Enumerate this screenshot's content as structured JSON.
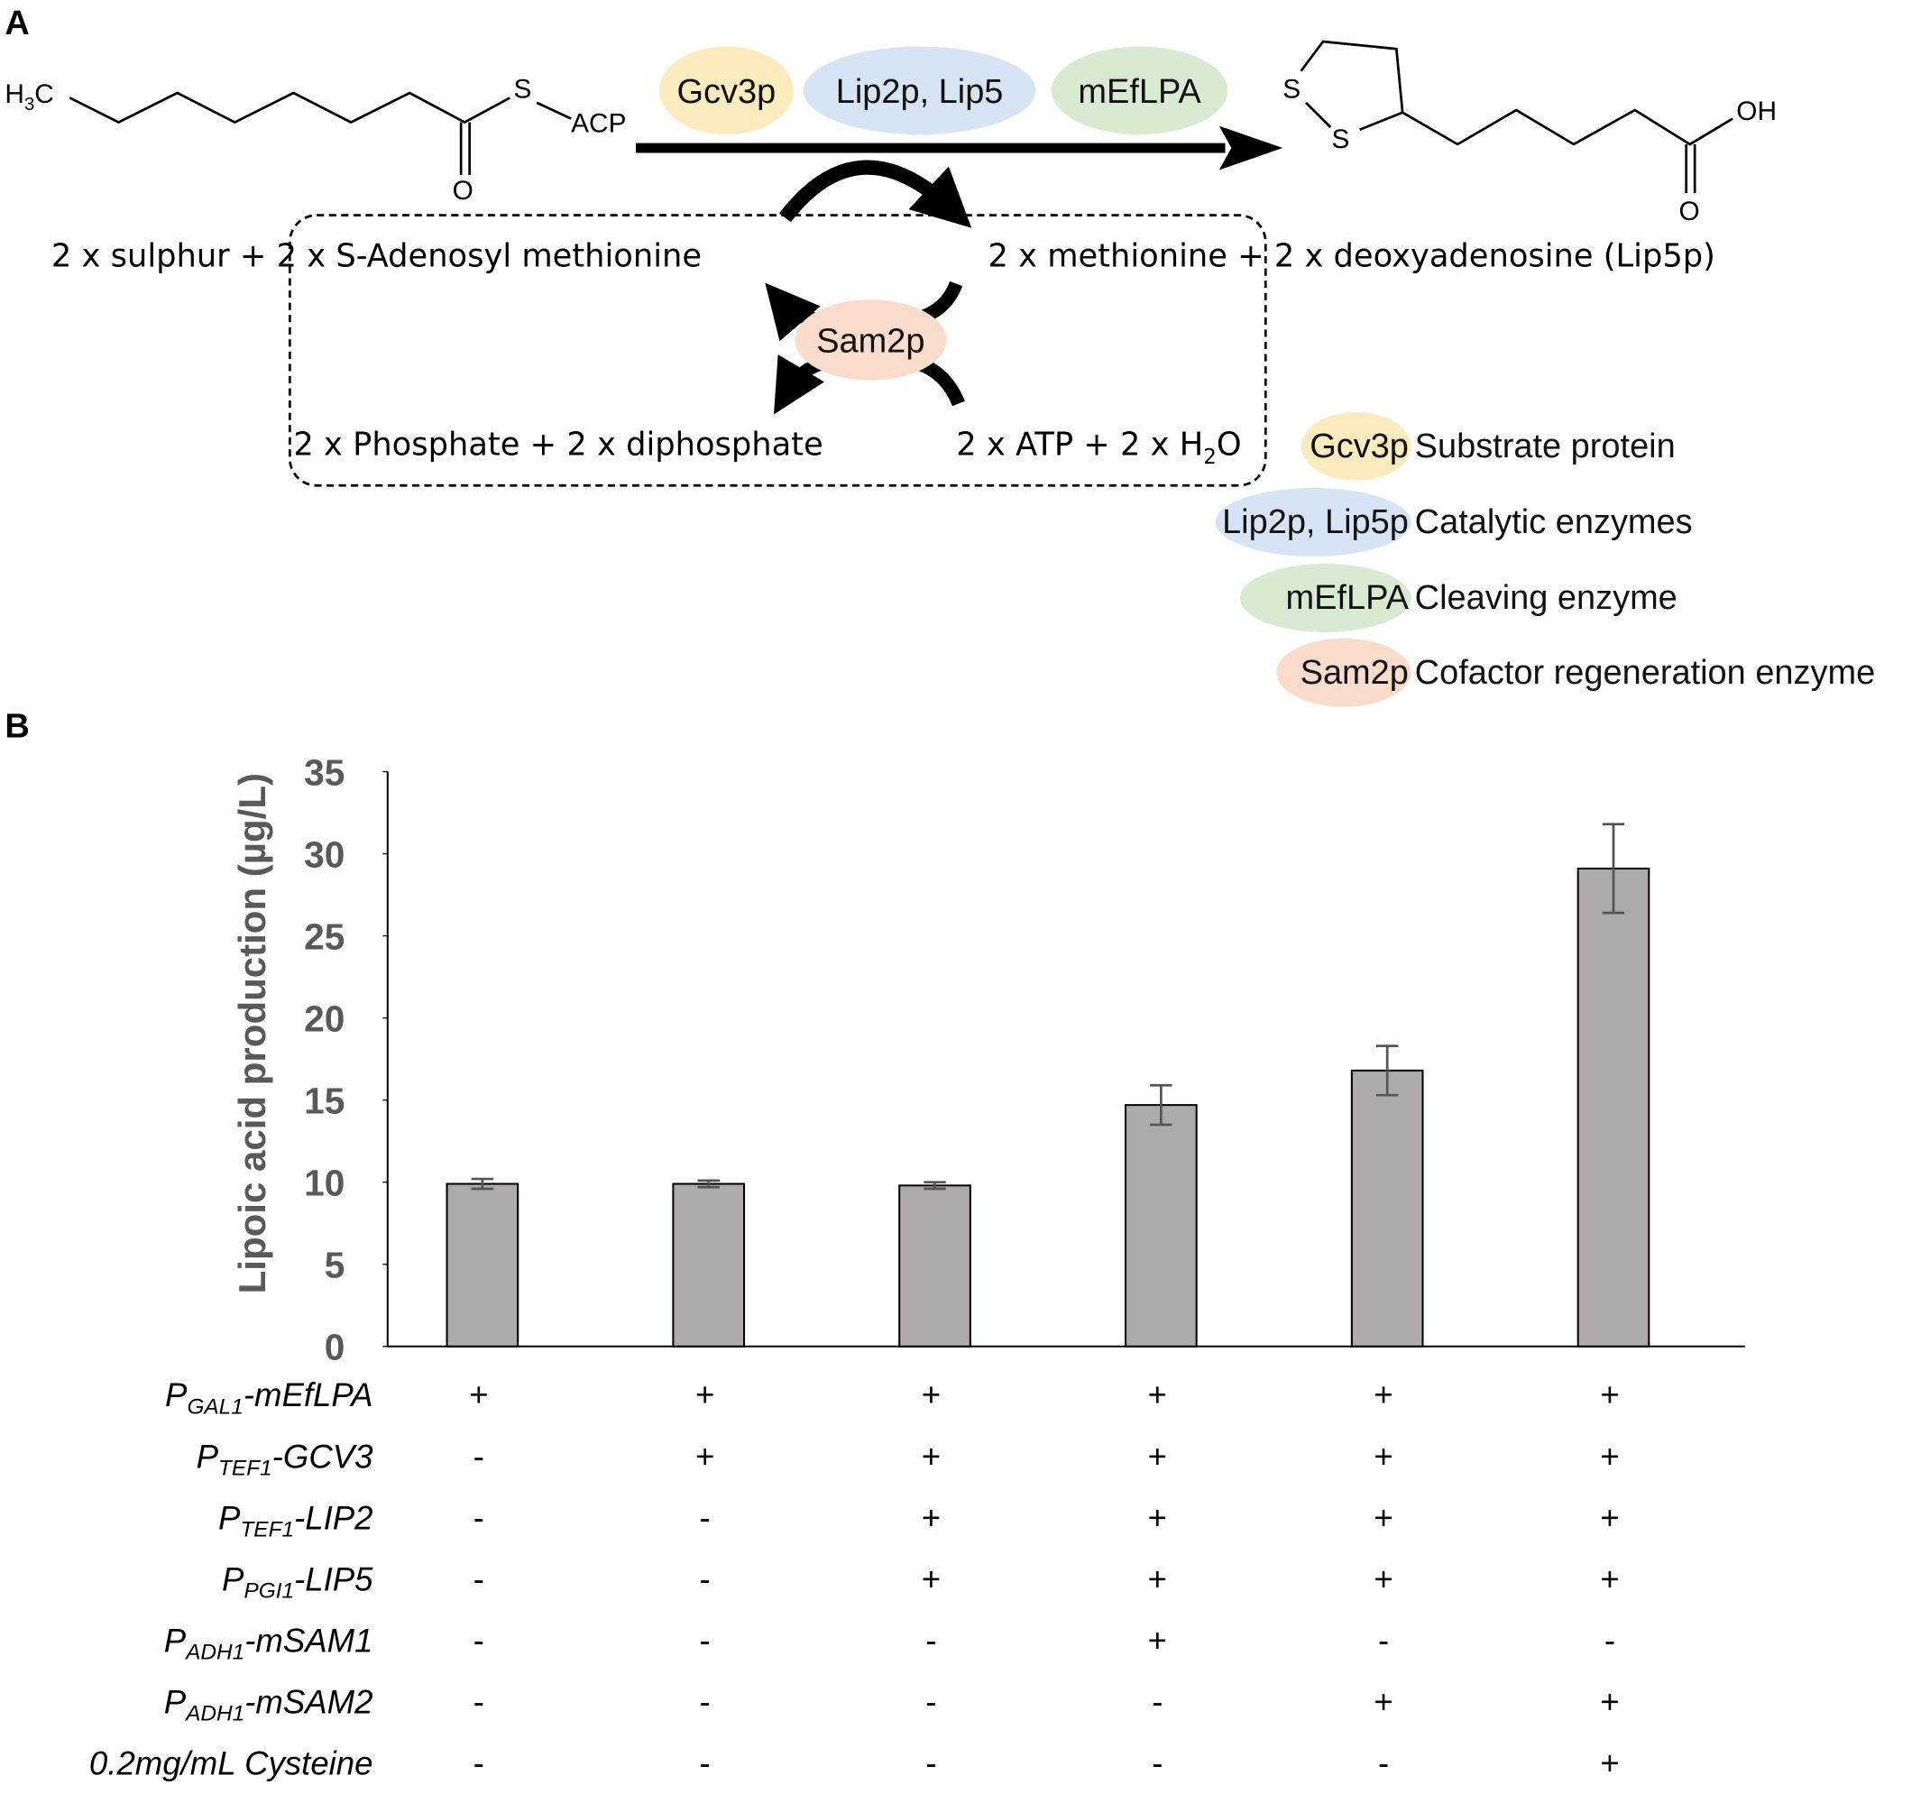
{
  "panel_a": {
    "label": "A",
    "substrate": {
      "h": "H",
      "sub3": "3",
      "c": "C",
      "s": "S",
      "acp": "ACP",
      "o": "O"
    },
    "product": {
      "s1": "S",
      "s2": "S",
      "oh": "OH",
      "o": "O"
    },
    "enzymes": [
      "Gcv3p",
      "Lip2p, Lip5",
      "mEfLPA"
    ],
    "reaction_left": "2 x sulphur + 2 x S-Adenosyl methionine",
    "reaction_right": "2 x methionine + 2 x deoxyadenosine (Lip5p)",
    "cofactor_enzyme": "Sam2p",
    "regen_left": "2 x Phosphate + 2 x diphosphate",
    "regen_right": {
      "text": "2 x ATP + 2 x H",
      "sub": "2",
      "end": "O"
    },
    "legend": [
      {
        "enzyme": "Gcv3p",
        "role": "Substrate protein"
      },
      {
        "enzyme": "Lip2p, Lip5p",
        "role": "Catalytic enzymes"
      },
      {
        "enzyme": "mEfLPA",
        "role": "Cleaving enzyme"
      },
      {
        "enzyme": "Sam2p",
        "role": "Cofactor regeneration enzyme"
      }
    ]
  },
  "chart_data": {
    "type": "bar",
    "panel_label": "B",
    "y_label": "Lipoic acid production (µg/L)",
    "values": [
      9.9,
      9.9,
      9.8,
      14.7,
      16.8,
      29.1
    ],
    "errors": [
      0.3,
      0.2,
      0.2,
      1.2,
      1.5,
      2.7
    ],
    "color": "#aeaaaa",
    "ylim": [
      0,
      35
    ],
    "yticks": [
      0,
      5,
      10,
      15,
      20,
      25,
      30,
      35
    ],
    "conditions": [
      {
        "prefix": "P",
        "sub": "GAL1",
        "gene": "-mEfLPA",
        "signs": [
          "+",
          "+",
          "+",
          "+",
          "+",
          "+"
        ]
      },
      {
        "prefix": "P",
        "sub": "TEF1",
        "gene": "-GCV3",
        "signs": [
          "-",
          "+",
          "+",
          "+",
          "+",
          "+"
        ]
      },
      {
        "prefix": "P",
        "sub": "TEF1",
        "gene": "-LIP2",
        "signs": [
          "-",
          "-",
          "+",
          "+",
          "+",
          "+"
        ]
      },
      {
        "prefix": "P",
        "sub": "PGI1",
        "gene": "-LIP5",
        "signs": [
          "-",
          "-",
          "+",
          "+",
          "+",
          "+"
        ]
      },
      {
        "prefix": "P",
        "sub": "ADH1",
        "gene": "-mSAM1",
        "signs": [
          "-",
          "-",
          "-",
          "+",
          "-",
          "-"
        ]
      },
      {
        "prefix": "P",
        "sub": "ADH1",
        "gene": "-mSAM2",
        "signs": [
          "-",
          "-",
          "-",
          "-",
          "+",
          "+"
        ]
      },
      {
        "gene": "0.2mg/mL Cysteine",
        "signs": [
          "-",
          "-",
          "-",
          "-",
          "-",
          "+"
        ]
      }
    ]
  }
}
